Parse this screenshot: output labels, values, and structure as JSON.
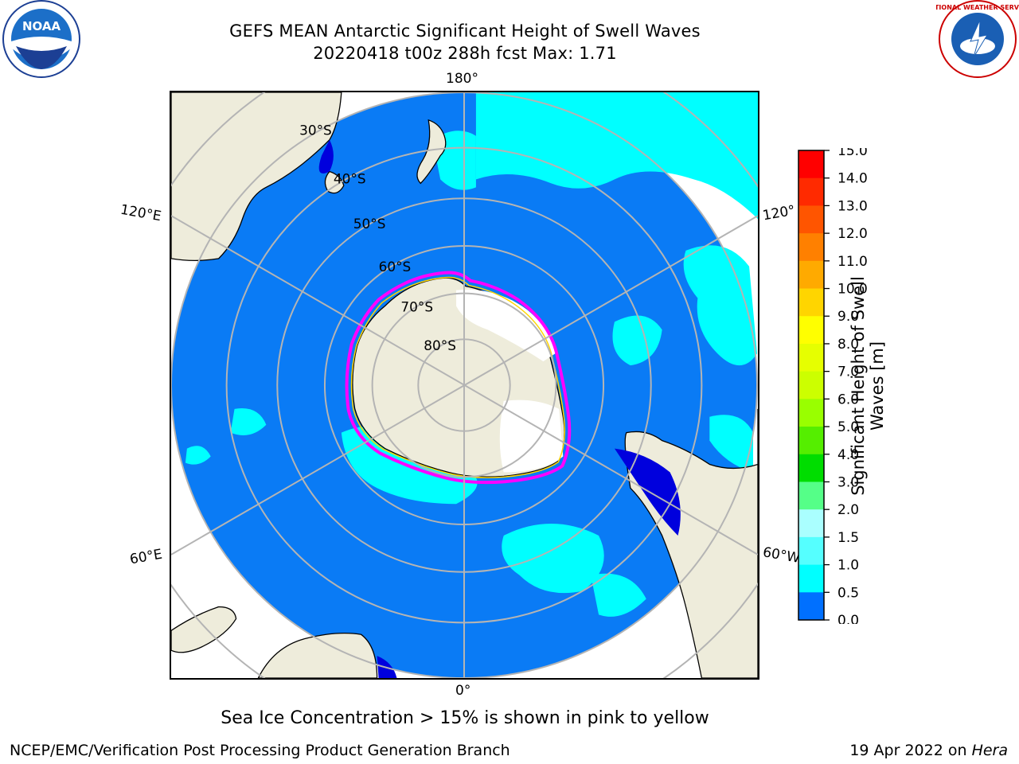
{
  "title": {
    "line1": "GEFS MEAN Antarctic Significant Height of Swell Waves",
    "line2": "20220418 t00z 288h fcst   Max: 1.71"
  },
  "map": {
    "projection": "south-polar-stereographic",
    "lon_labels": {
      "top": "180°",
      "bottom": "0°",
      "left_upper": "120°E",
      "left_lower": "60°E",
      "right_upper": "120°",
      "right_lower": "60°W"
    },
    "lat_labels": [
      "30°S",
      "40°S",
      "50°S",
      "60°S",
      "70°S",
      "80°S"
    ],
    "colors": {
      "land": "#eeecdb",
      "ocean_low": "#0070ff",
      "ocean_high": "#00ffff",
      "ice": "#ffffff",
      "ice_edge": "#ff00ff",
      "grid": "#b4b4b4"
    }
  },
  "colorbar": {
    "label_line1": "Significant Height of Swell",
    "label_line2": "Waves [m]",
    "ticks": [
      "15.0",
      "14.0",
      "13.0",
      "12.0",
      "11.0",
      "10.0",
      "9.0",
      "8.0",
      "7.0",
      "6.0",
      "5.0",
      "4.0",
      "3.0",
      "2.0",
      "1.5",
      "1.0",
      "0.5",
      "0.0"
    ],
    "colors": [
      "#ff0000",
      "#ff2a00",
      "#ff5500",
      "#ff8000",
      "#ffaa00",
      "#ffd500",
      "#ffff00",
      "#e6ff00",
      "#ccff00",
      "#99ff00",
      "#55ee00",
      "#00dd00",
      "#55ff88",
      "#aaffff",
      "#55ffff",
      "#00ffff",
      "#0070ff",
      "#0000ff"
    ]
  },
  "logos": {
    "left": "NOAA",
    "right": "NATIONAL WEATHER SERVICE"
  },
  "caption": "Sea Ice Concentration > 15% is shown in pink to yellow",
  "footer": {
    "left": "NCEP/EMC/Verification Post Processing Product Generation Branch",
    "right_date": "19 Apr 2022 on ",
    "right_host": "Hera"
  }
}
